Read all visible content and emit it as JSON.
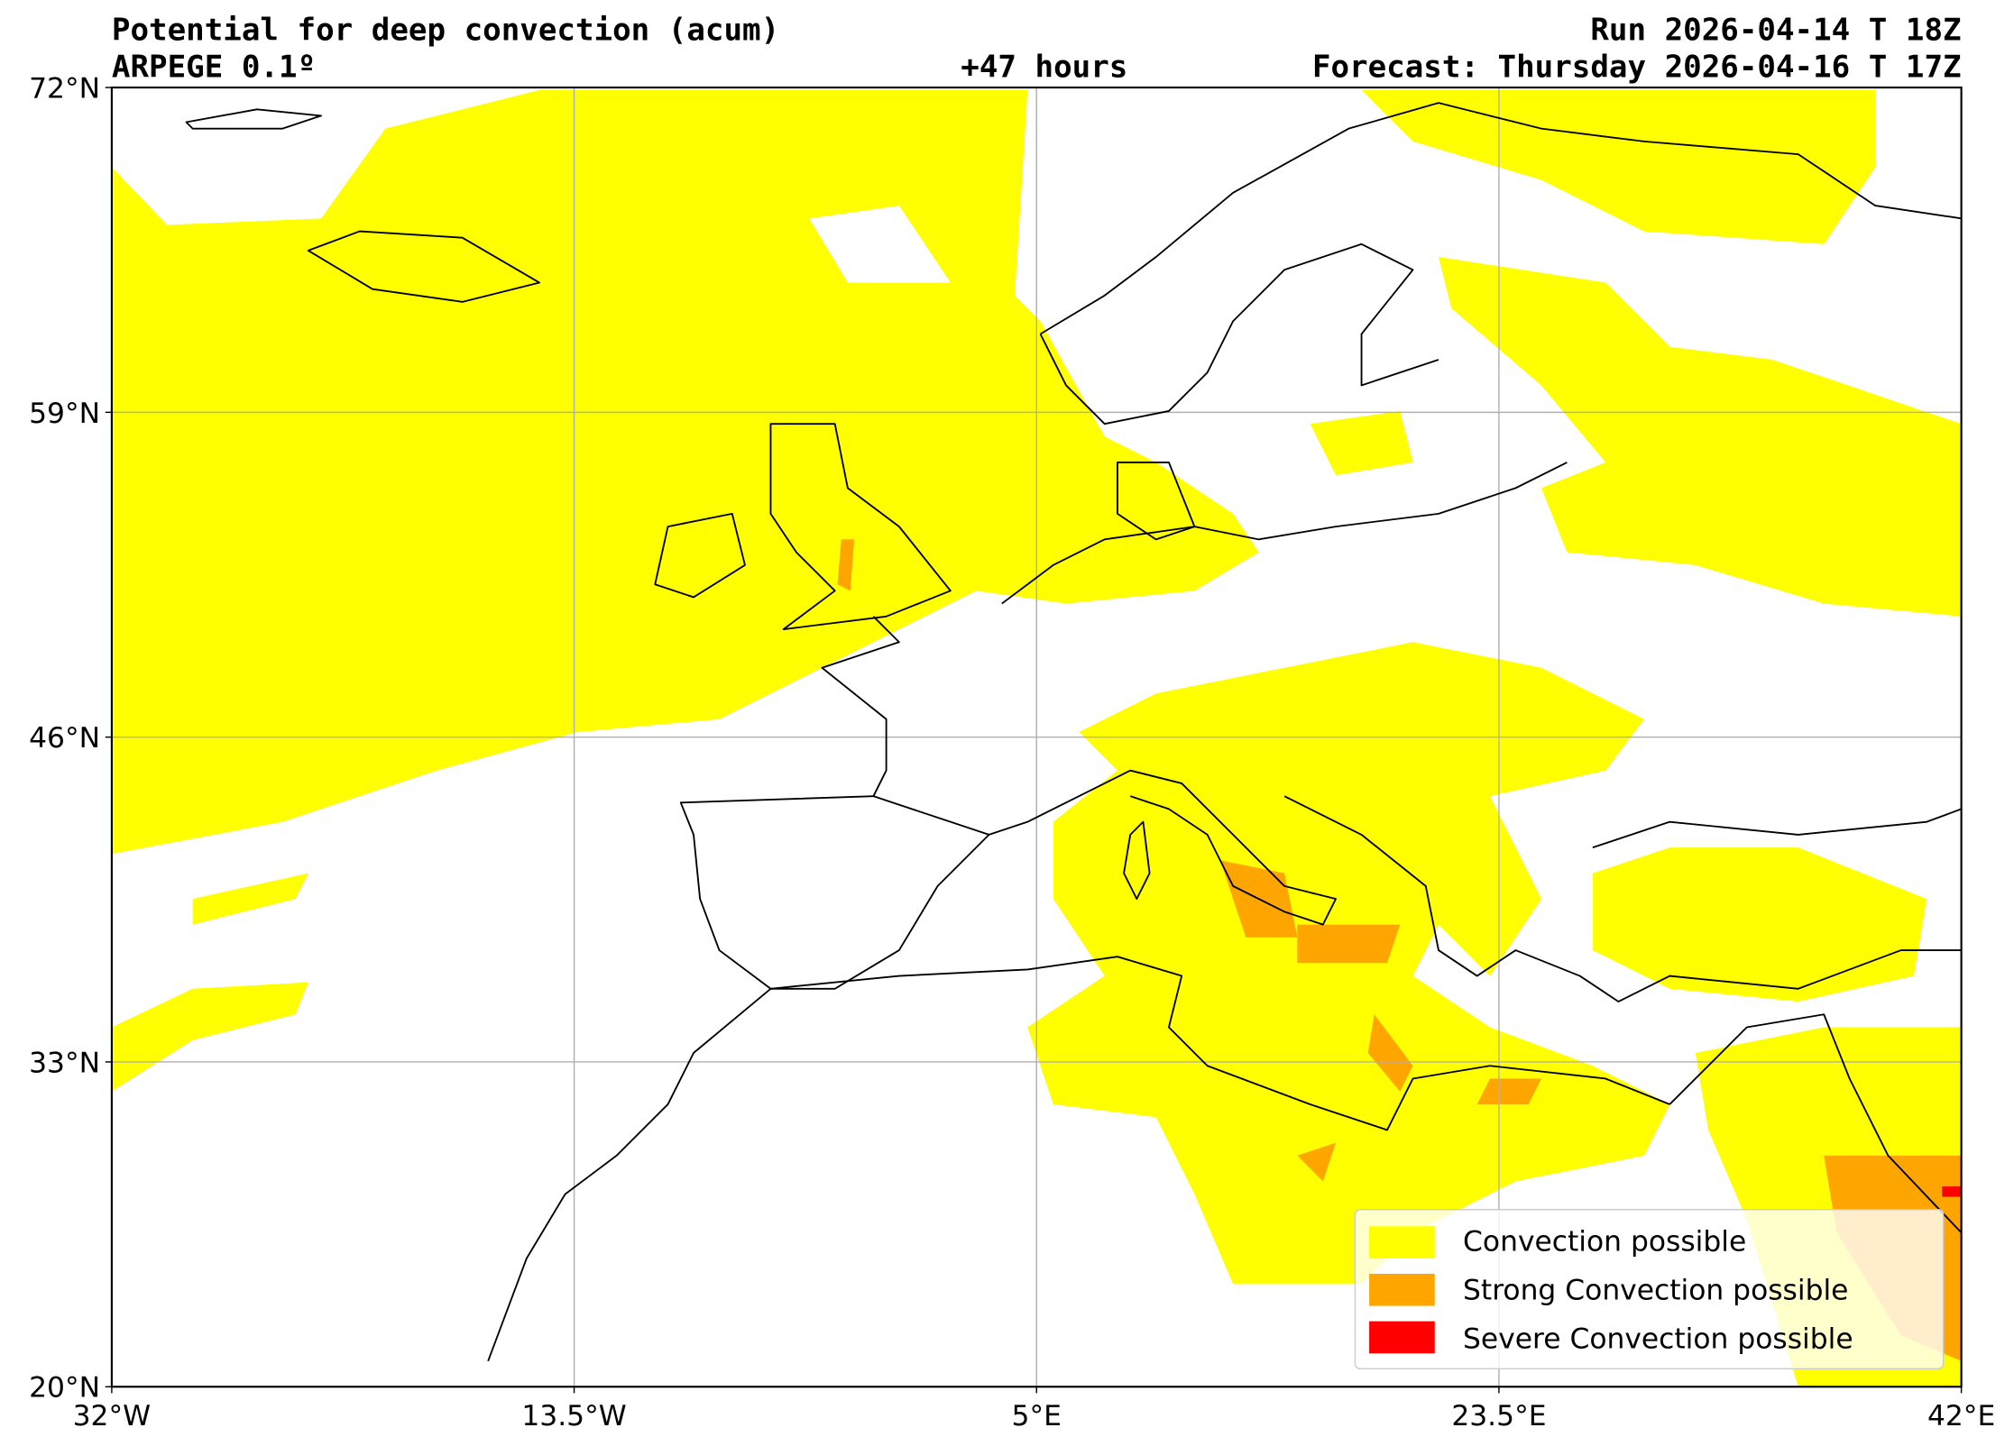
{
  "header": {
    "title": "Potential for deep convection (acum)",
    "model": "ARPEGE 0.1º",
    "lead_time": "+47 hours",
    "run": "Run 2026-04-14 T 18Z",
    "forecast": "Forecast: Thursday 2026-04-16 T 17Z"
  },
  "axes": {
    "lat_ticks": [
      "72°N",
      "59°N",
      "46°N",
      "33°N",
      "20°N"
    ],
    "lon_ticks": [
      "32°W",
      "13.5°W",
      "5°E",
      "23.5°E",
      "42°E"
    ],
    "lat_range": [
      20,
      72
    ],
    "lon_range": [
      -32,
      42
    ]
  },
  "legend": {
    "items": [
      {
        "label": "Convection possible",
        "color": "#ffff00"
      },
      {
        "label": "Strong Convection possible",
        "color": "#ffa500"
      },
      {
        "label": "Severe Convection possible",
        "color": "#ff0000"
      }
    ]
  }
}
